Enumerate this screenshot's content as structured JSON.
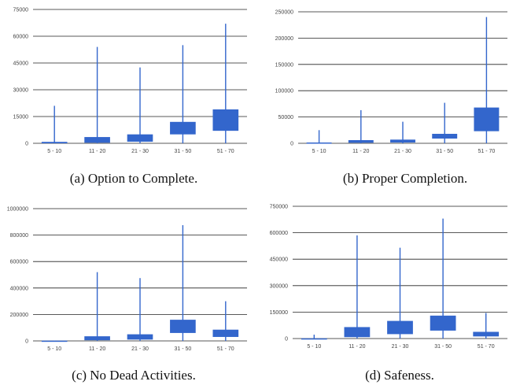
{
  "charts": [
    {
      "caption": "(a) Option to Complete.",
      "chart_data": {
        "type": "boxplot",
        "categories": [
          "5 - 10",
          "11 - 20",
          "21 - 30",
          "31 - 50",
          "51 - 70"
        ],
        "ylim": [
          0,
          75000
        ],
        "yticks": [
          0,
          15000,
          30000,
          45000,
          60000,
          75000
        ],
        "ytick_labels": [
          "0",
          "15000",
          "30000",
          "45000",
          "60000",
          "75000"
        ],
        "grid": true,
        "color": "#3366cc",
        "boxes": [
          {
            "min": 0,
            "q1": 0,
            "q3": 800,
            "max": 21000
          },
          {
            "min": 0,
            "q1": 300,
            "q3": 3500,
            "max": 54000
          },
          {
            "min": 0,
            "q1": 900,
            "q3": 5000,
            "max": 42500
          },
          {
            "min": 0,
            "q1": 5000,
            "q3": 12000,
            "max": 55000
          },
          {
            "min": 0,
            "q1": 7000,
            "q3": 19000,
            "max": 67000
          }
        ]
      }
    },
    {
      "caption": "(b) Proper Completion.",
      "chart_data": {
        "type": "boxplot",
        "categories": [
          "5 - 10",
          "11 - 20",
          "21 - 30",
          "31 - 50",
          "51 - 70"
        ],
        "ylim": [
          0,
          250000
        ],
        "yticks": [
          0,
          50000,
          100000,
          150000,
          200000,
          250000
        ],
        "ytick_labels": [
          "0",
          "50000",
          "100000",
          "150000",
          "200000",
          "250000"
        ],
        "grid": true,
        "color": "#3366cc",
        "boxes": [
          {
            "min": 0,
            "q1": 0,
            "q3": 1500,
            "max": 25000
          },
          {
            "min": 0,
            "q1": 1000,
            "q3": 6000,
            "max": 63000
          },
          {
            "min": 0,
            "q1": 1500,
            "q3": 7000,
            "max": 41000
          },
          {
            "min": 0,
            "q1": 9000,
            "q3": 18000,
            "max": 77000
          },
          {
            "min": 0,
            "q1": 23000,
            "q3": 68000,
            "max": 240000
          }
        ]
      }
    },
    {
      "caption": "(c) No Dead Activities.",
      "chart_data": {
        "type": "boxplot",
        "categories": [
          "5 - 10",
          "11 - 20",
          "21 - 30",
          "31 - 50",
          "51 - 70"
        ],
        "ylim": [
          0,
          1000000
        ],
        "yticks": [
          0,
          200000,
          400000,
          600000,
          800000,
          1000000
        ],
        "ytick_labels": [
          "0",
          "200000",
          "400000",
          "600000",
          "800000",
          "1000000"
        ],
        "grid": true,
        "color": "#3366cc",
        "boxes": [
          {
            "min": 0,
            "q1": 0,
            "q3": 2000,
            "max": 3000
          },
          {
            "min": 0,
            "q1": 5000,
            "q3": 35000,
            "max": 520000
          },
          {
            "min": 0,
            "q1": 10000,
            "q3": 50000,
            "max": 475000
          },
          {
            "min": 0,
            "q1": 60000,
            "q3": 160000,
            "max": 875000
          },
          {
            "min": 0,
            "q1": 30000,
            "q3": 85000,
            "max": 300000
          }
        ]
      }
    },
    {
      "caption": "(d) Safeness.",
      "chart_data": {
        "type": "boxplot",
        "categories": [
          "5 - 10",
          "11 - 20",
          "21 - 30",
          "31 - 50",
          "51 - 70"
        ],
        "ylim": [
          0,
          750000
        ],
        "yticks": [
          0,
          150000,
          300000,
          450000,
          600000,
          750000
        ],
        "ytick_labels": [
          "0",
          "150000",
          "300000",
          "450000",
          "600000",
          "750000"
        ],
        "grid": true,
        "color": "#3366cc",
        "boxes": [
          {
            "min": 0,
            "q1": 0,
            "q3": 1000,
            "max": 22000
          },
          {
            "min": 0,
            "q1": 8000,
            "q3": 65000,
            "max": 585000
          },
          {
            "min": 0,
            "q1": 25000,
            "q3": 100000,
            "max": 515000
          },
          {
            "min": 0,
            "q1": 45000,
            "q3": 130000,
            "max": 680000
          },
          {
            "min": 0,
            "q1": 12000,
            "q3": 38000,
            "max": 145000
          }
        ]
      }
    }
  ]
}
